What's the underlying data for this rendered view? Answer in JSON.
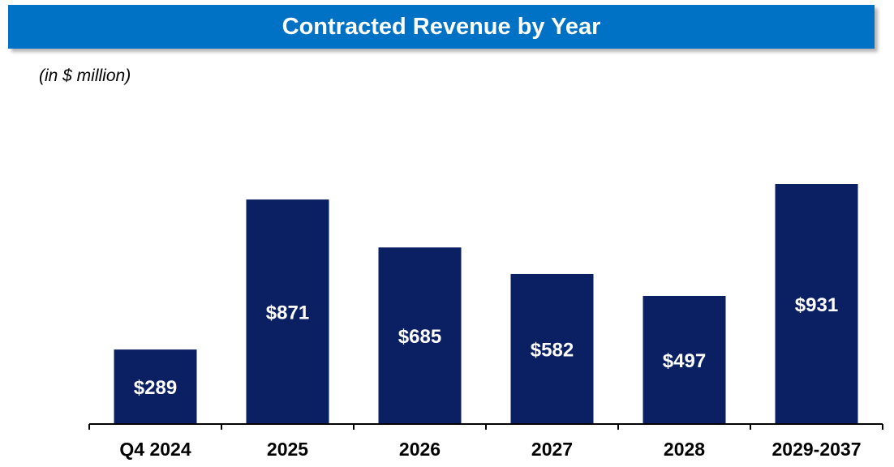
{
  "title": "Contracted Revenue by Year",
  "unit_note": "(in $ million)",
  "colors": {
    "title_bar": "#0072C6",
    "bar": "#0B1F63",
    "bar_label": "#FFFFFF",
    "axis": "#000000"
  },
  "chart_data": {
    "type": "bar",
    "title": "Contracted Revenue by Year",
    "xlabel": "",
    "ylabel": "",
    "categories": [
      "Q4 2024",
      "2025",
      "2026",
      "2027",
      "2028",
      "2029-2037"
    ],
    "values": [
      289,
      871,
      685,
      582,
      497,
      931
    ],
    "data_labels": [
      "$289",
      "$871",
      "$685",
      "$582",
      "$497",
      "$931"
    ],
    "ylim": [
      0,
      1000
    ],
    "grid": false,
    "legend": "none"
  }
}
